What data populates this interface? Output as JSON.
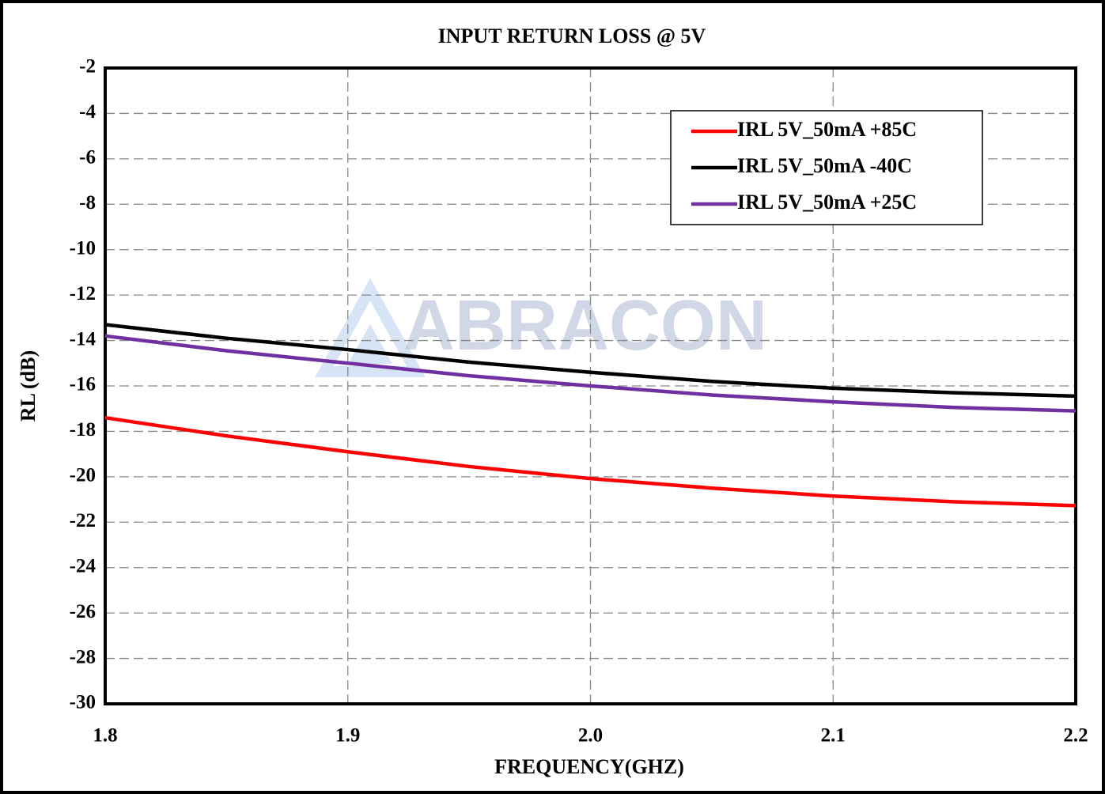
{
  "chart_data": {
    "type": "line",
    "title": "INPUT RETURN LOSS @ 5V",
    "xlabel": "FREQUENCY(GHZ)",
    "ylabel": "RL (dB)",
    "watermark": "ABRACON",
    "x": [
      1.8,
      1.85,
      1.9,
      1.95,
      2.0,
      2.05,
      2.1,
      2.15,
      2.2
    ],
    "series": [
      {
        "name": "IRL 5V_50mA +85C",
        "color": "#ff0000",
        "values": [
          -17.4,
          -18.2,
          -18.9,
          -19.55,
          -20.08,
          -20.5,
          -20.85,
          -21.1,
          -21.27
        ]
      },
      {
        "name": "IRL 5V_50mA -40C",
        "color": "#000000",
        "values": [
          -13.3,
          -13.9,
          -14.4,
          -14.95,
          -15.4,
          -15.8,
          -16.1,
          -16.3,
          -16.45
        ]
      },
      {
        "name": "IRL 5V_50mA +25C",
        "color": "#7030a0",
        "values": [
          -13.8,
          -14.45,
          -15.0,
          -15.55,
          -16.0,
          -16.4,
          -16.7,
          -16.95,
          -17.1
        ]
      }
    ],
    "xlim": [
      1.8,
      2.2
    ],
    "xticks": [
      1.8,
      1.9,
      {
        "value": 2,
        "label": "2.0"
      },
      2.1,
      2.2
    ],
    "ylim": [
      -30,
      -2
    ],
    "yticks": [
      -2,
      -4,
      -6,
      -8,
      -10,
      -12,
      -14,
      -16,
      -18,
      -20,
      -22,
      -24,
      -26,
      -28,
      -30
    ],
    "grid": true,
    "legend": "upper right"
  }
}
